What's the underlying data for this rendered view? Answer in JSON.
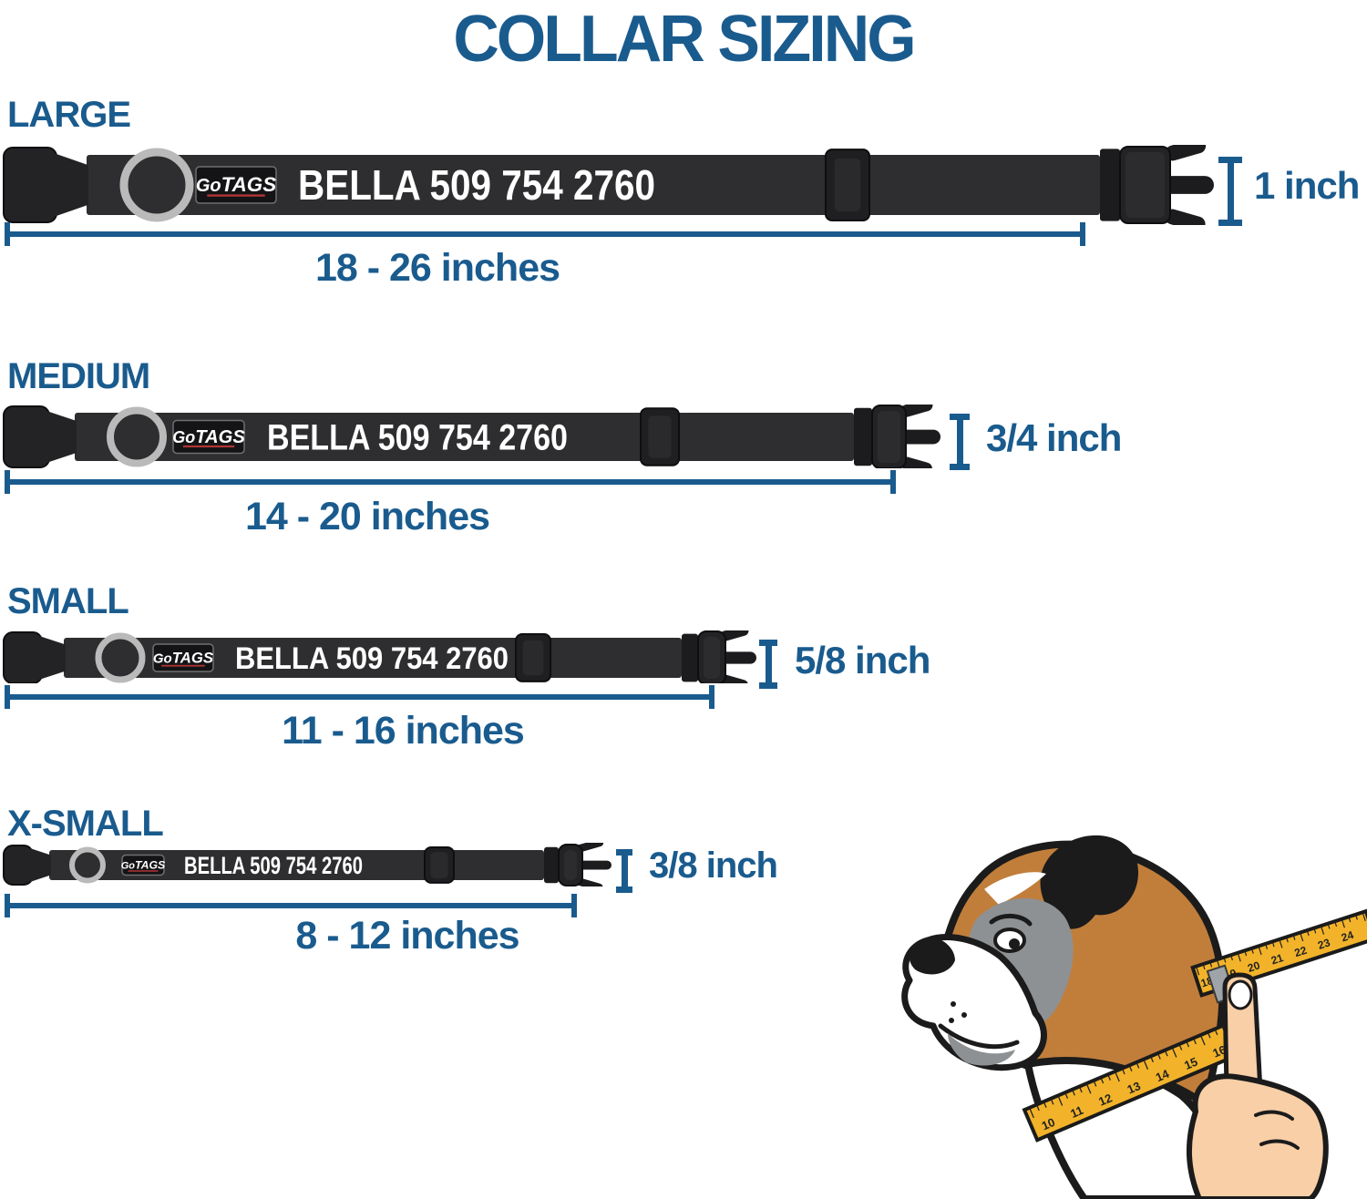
{
  "title": "COLLAR SIZING",
  "brand": {
    "logo_prefix": "Go",
    "logo_suffix": "TAGS",
    "collar_text": "BELLA 509 754 2760"
  },
  "rows": [
    {
      "size_label": "LARGE",
      "width_label": "1 inch",
      "range_label": "18 - 26 inches"
    },
    {
      "size_label": "MEDIUM",
      "width_label": "3/4 inch",
      "range_label": "14 - 20 inches"
    },
    {
      "size_label": "SMALL",
      "width_label": "5/8 inch",
      "range_label": "11 - 16 inches"
    },
    {
      "size_label": "X-SMALL",
      "width_label": "3/8 inch",
      "range_label": "8 - 12 inches"
    }
  ],
  "tape": {
    "lower_numbers": [
      "10",
      "11",
      "12",
      "13",
      "14",
      "15",
      "16"
    ],
    "upper_numbers": [
      "18",
      "19",
      "20",
      "21",
      "22",
      "23",
      "24"
    ]
  },
  "colors": {
    "blue": "#1a5b8e",
    "collar": "#2e2e30",
    "buckle": "#232325",
    "outline": "#0e0e10",
    "ring": "#b9bab9",
    "logo_red": "#b03535",
    "name_text": "#ffffff",
    "tape": "#f2b32a",
    "skin": "#f8cfa6",
    "dog_brown": "#c17e3b",
    "dog_gray": "#8e9193"
  }
}
